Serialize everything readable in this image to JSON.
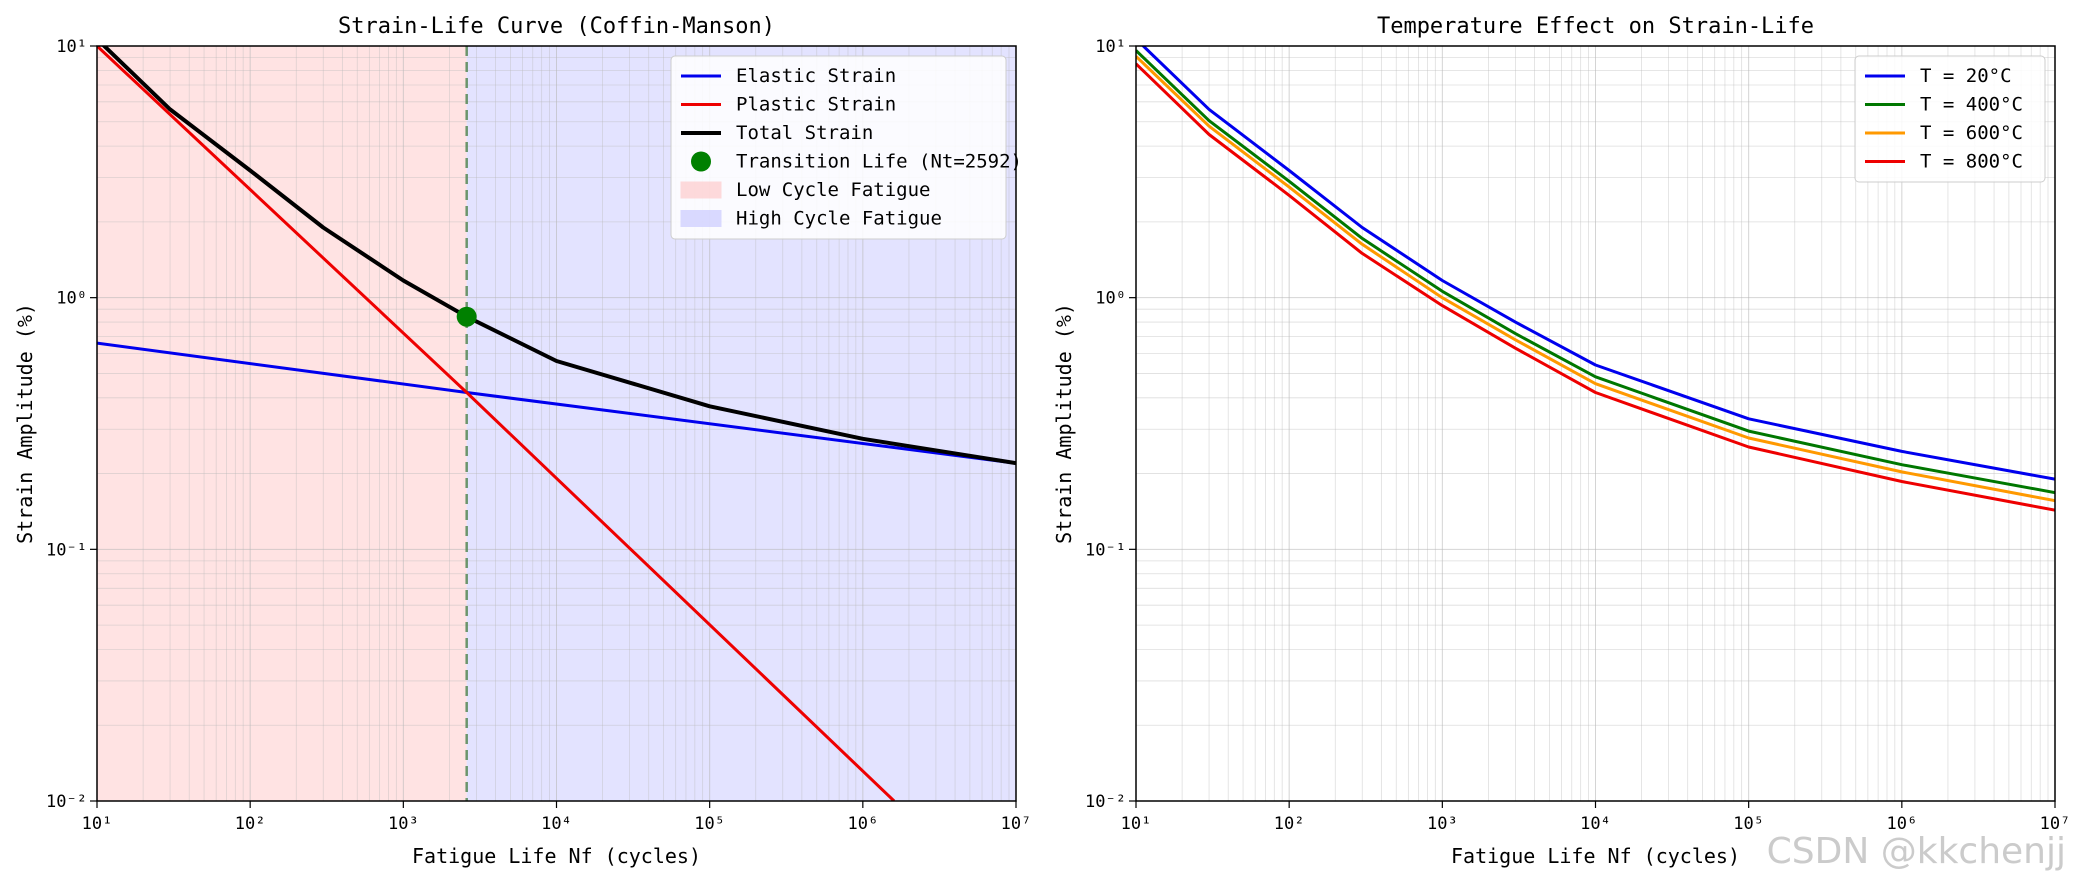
{
  "chart_data": [
    {
      "type": "line",
      "scale": "log-log",
      "title": "Strain-Life Curve (Coffin-Manson)",
      "xlabel": "Fatigue Life Nf (cycles)",
      "ylabel": "Strain Amplitude (%)",
      "xlim": [
        10,
        10000000
      ],
      "ylim": [
        0.01,
        10
      ],
      "x_ticks": [
        {
          "value": 10,
          "label": "10¹"
        },
        {
          "value": 100,
          "label": "10²"
        },
        {
          "value": 1000,
          "label": "10³"
        },
        {
          "value": 10000,
          "label": "10⁴"
        },
        {
          "value": 100000,
          "label": "10⁵"
        },
        {
          "value": 1000000,
          "label": "10⁶"
        },
        {
          "value": 10000000,
          "label": "10⁷"
        }
      ],
      "y_ticks": [
        {
          "value": 0.01,
          "label": "10⁻²"
        },
        {
          "value": 0.1,
          "label": "10⁻¹"
        },
        {
          "value": 1,
          "label": "10⁰"
        },
        {
          "value": 10,
          "label": "10¹"
        }
      ],
      "grid": true,
      "legend_position": "top-right",
      "regions": [
        {
          "name": "Low Cycle Fatigue",
          "x_from": 10,
          "x_to": 2592,
          "color": "#ffcccc"
        },
        {
          "name": "High Cycle Fatigue",
          "x_from": 2592,
          "x_to": 10000000,
          "color": "#ccccff"
        }
      ],
      "vline": {
        "x": 2592,
        "color": "#558855"
      },
      "series": [
        {
          "name": "Elastic Strain",
          "color": "#0000ee",
          "x": [
            10,
            2592,
            10000000
          ],
          "values": [
            0.66,
            0.42,
            0.22
          ]
        },
        {
          "name": "Plastic Strain",
          "color": "#ee0000",
          "x": [
            10,
            2592,
            1600000
          ],
          "values": [
            10.0,
            0.42,
            0.01
          ]
        },
        {
          "name": "Total Strain",
          "color": "#000000",
          "x": [
            10,
            30,
            100,
            300,
            1000,
            2592,
            10000,
            100000,
            1000000,
            10000000
          ],
          "values": [
            10.66,
            5.6,
            3.2,
            1.9,
            1.17,
            0.84,
            0.56,
            0.37,
            0.275,
            0.22
          ]
        }
      ],
      "points": [
        {
          "name": "Transition Life (Nt=2592)",
          "x": 2592,
          "y": 0.84,
          "color": "#008000"
        }
      ],
      "legend": [
        "Elastic Strain",
        "Plastic Strain",
        "Total Strain",
        "Transition Life (Nt=2592)",
        "Low Cycle Fatigue",
        "High Cycle Fatigue"
      ]
    },
    {
      "type": "line",
      "scale": "log-log",
      "title": "Temperature Effect on Strain-Life",
      "xlabel": "Fatigue Life Nf (cycles)",
      "ylabel": "Strain Amplitude (%)",
      "xlim": [
        10,
        10000000
      ],
      "ylim": [
        0.01,
        10
      ],
      "x_ticks": [
        {
          "value": 10,
          "label": "10¹"
        },
        {
          "value": 100,
          "label": "10²"
        },
        {
          "value": 1000,
          "label": "10³"
        },
        {
          "value": 10000,
          "label": "10⁴"
        },
        {
          "value": 100000,
          "label": "10⁵"
        },
        {
          "value": 1000000,
          "label": "10⁶"
        },
        {
          "value": 10000000,
          "label": "10⁷"
        }
      ],
      "y_ticks": [
        {
          "value": 0.01,
          "label": "10⁻²"
        },
        {
          "value": 0.1,
          "label": "10⁻¹"
        },
        {
          "value": 1,
          "label": "10⁰"
        },
        {
          "value": 10,
          "label": "10¹"
        }
      ],
      "grid": true,
      "legend_position": "top-right",
      "series": [
        {
          "name": "T = 20°C",
          "color": "#0000ee",
          "x": [
            10,
            30,
            100,
            300,
            1000,
            3000,
            10000,
            100000,
            1000000,
            10000000
          ],
          "values": [
            10.66,
            5.6,
            3.2,
            1.9,
            1.17,
            0.8,
            0.54,
            0.33,
            0.245,
            0.19
          ]
        },
        {
          "name": "T = 400°C",
          "color": "#007700",
          "x": [
            10,
            30,
            100,
            300,
            1000,
            3000,
            10000,
            100000,
            1000000,
            10000000
          ],
          "values": [
            9.6,
            5.05,
            2.9,
            1.72,
            1.06,
            0.72,
            0.485,
            0.295,
            0.217,
            0.168
          ]
        },
        {
          "name": "T = 600°C",
          "color": "#ff9900",
          "x": [
            10,
            30,
            100,
            300,
            1000,
            3000,
            10000,
            100000,
            1000000,
            10000000
          ],
          "values": [
            9.1,
            4.8,
            2.75,
            1.63,
            1.0,
            0.68,
            0.455,
            0.277,
            0.203,
            0.156
          ]
        },
        {
          "name": "T = 800°C",
          "color": "#ee0000",
          "x": [
            10,
            30,
            100,
            300,
            1000,
            3000,
            10000,
            100000,
            1000000,
            10000000
          ],
          "values": [
            8.5,
            4.45,
            2.55,
            1.5,
            0.93,
            0.63,
            0.42,
            0.255,
            0.186,
            0.143
          ]
        }
      ],
      "legend": [
        "T = 20°C",
        "T = 400°C",
        "T = 600°C",
        "T = 800°C"
      ]
    }
  ],
  "watermark": "CSDN @kkchenjj"
}
